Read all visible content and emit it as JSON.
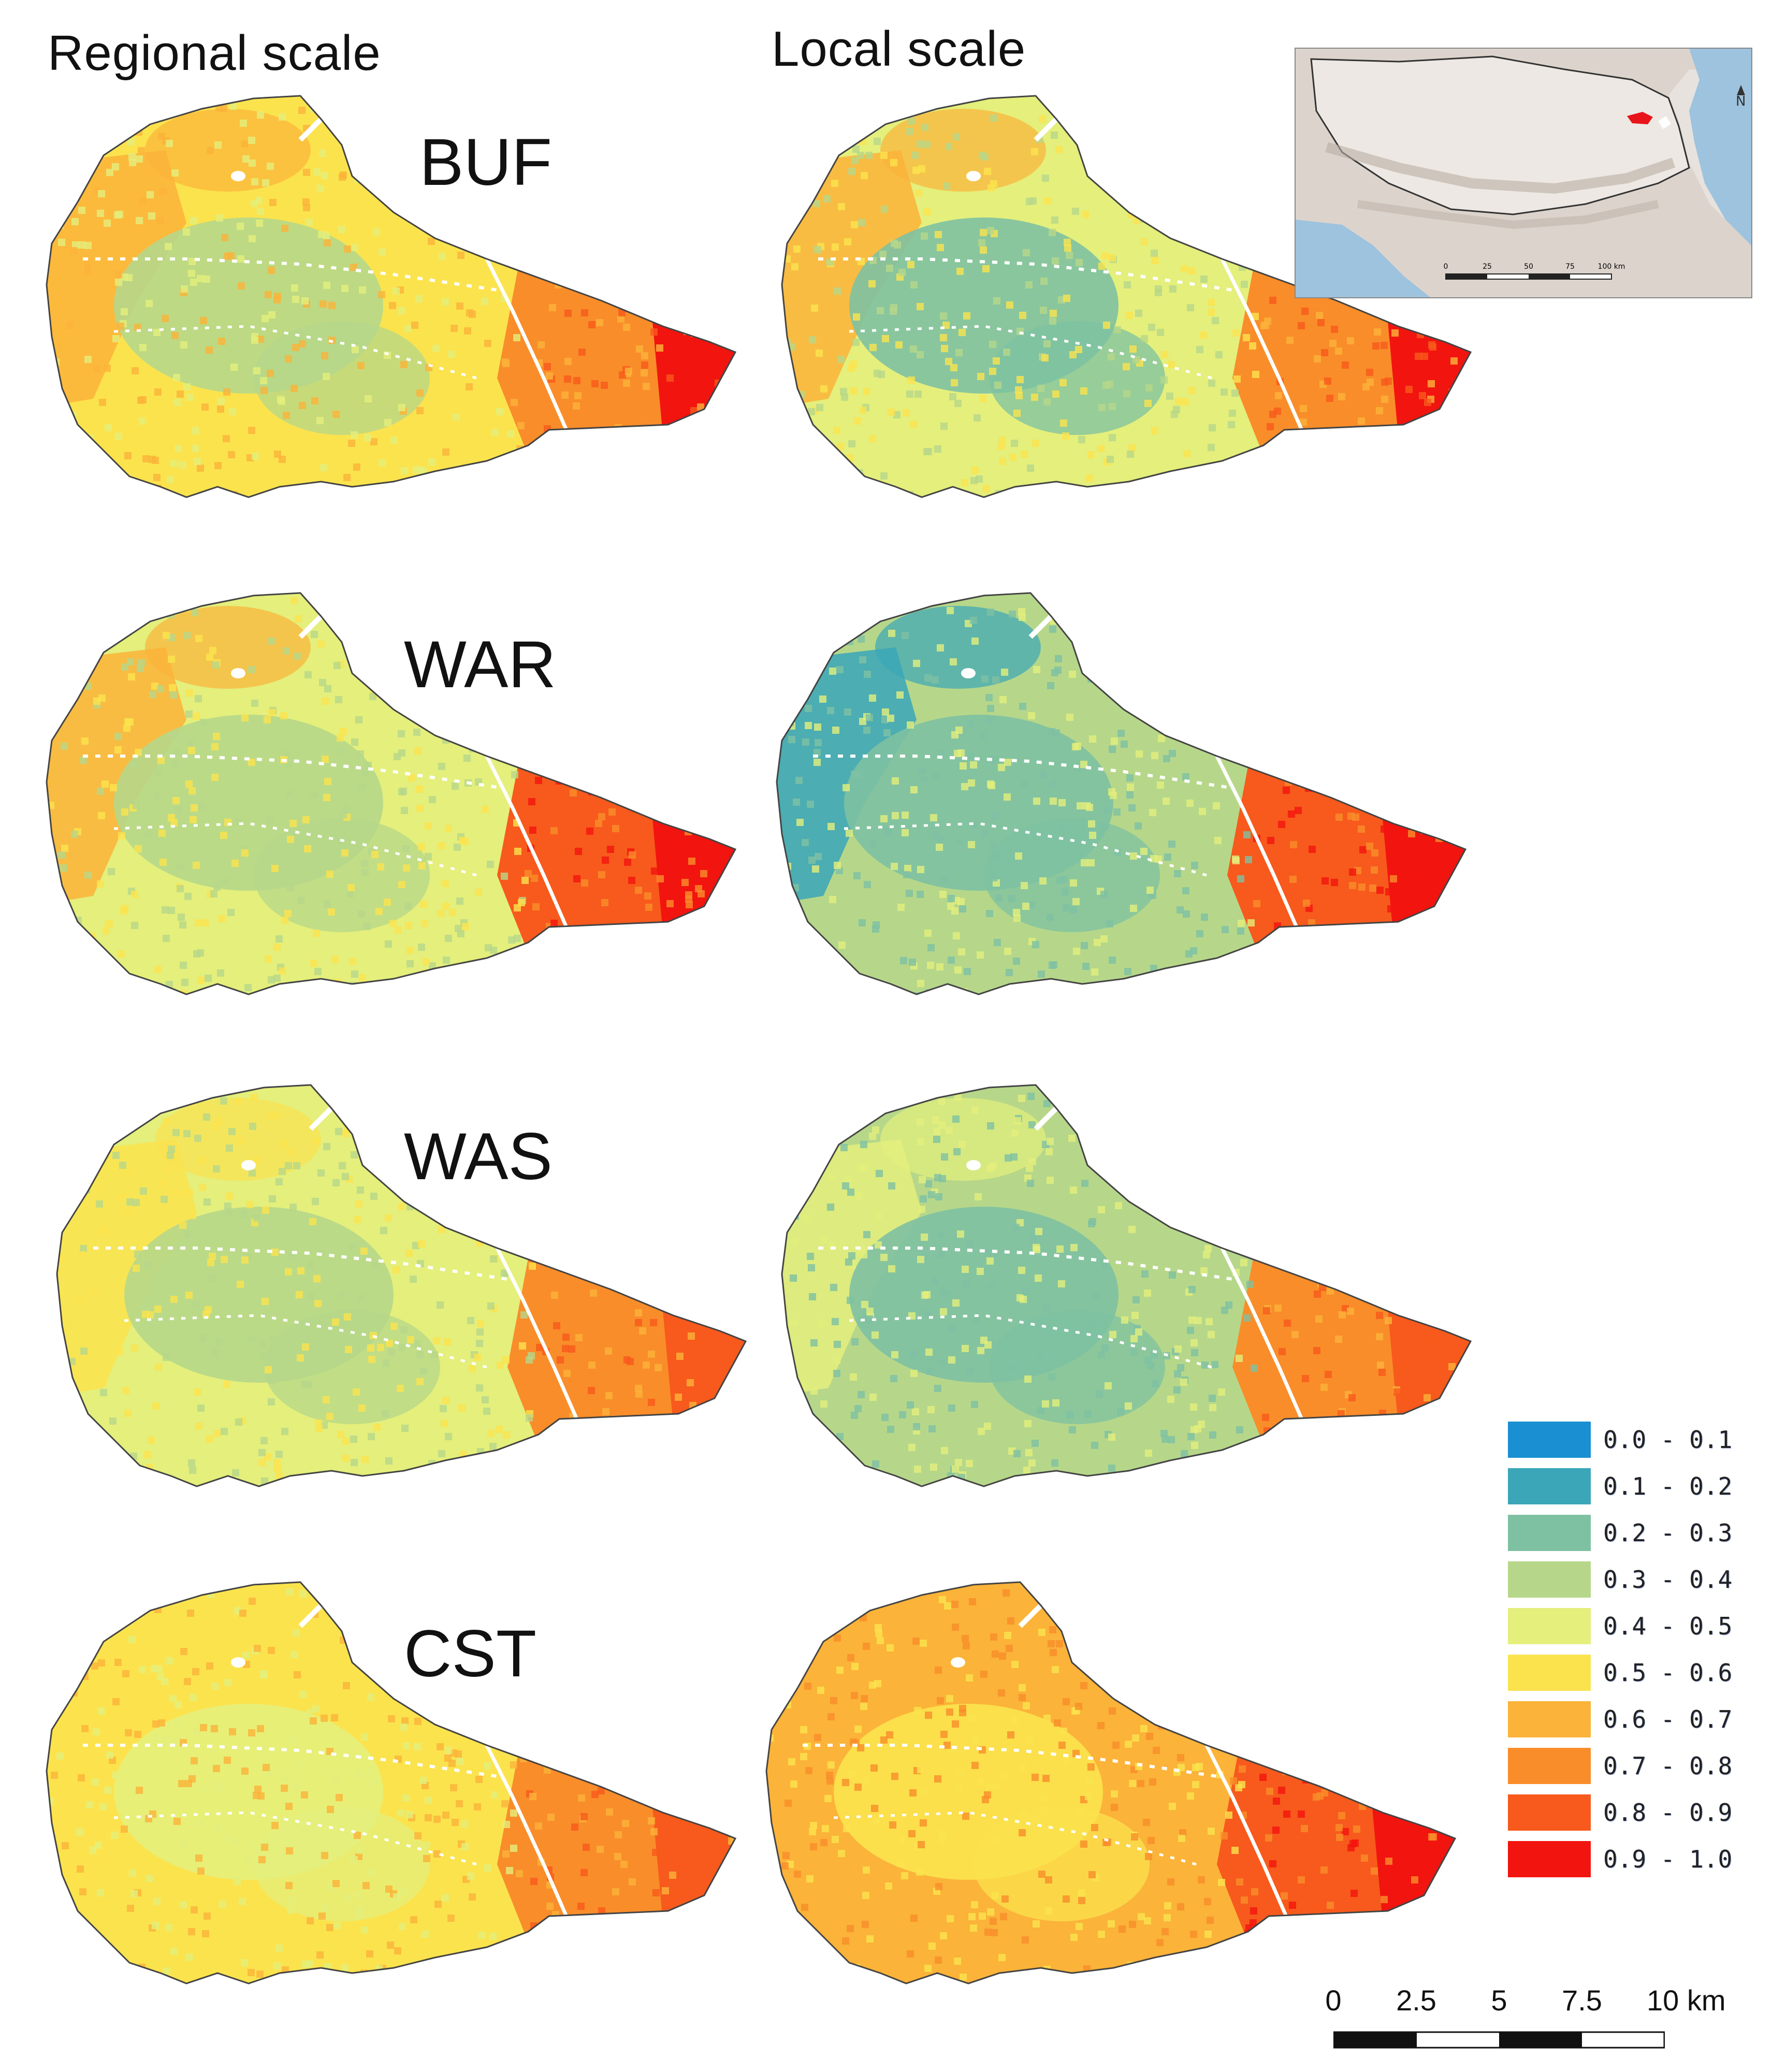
{
  "columns": {
    "regional": "Regional scale",
    "local": "Local scale"
  },
  "rows": [
    {
      "label": "BUF"
    },
    {
      "label": "WAR"
    },
    {
      "label": "WAS"
    },
    {
      "label": "CST"
    }
  ],
  "legend": [
    {
      "label": "0.0 - 0.1",
      "color": "#1a8fd1"
    },
    {
      "label": "0.1 - 0.2",
      "color": "#3aa6b8"
    },
    {
      "label": "0.2 - 0.3",
      "color": "#7ec1a2"
    },
    {
      "label": "0.3 - 0.4",
      "color": "#b6d78a"
    },
    {
      "label": "0.4 - 0.5",
      "color": "#e4ef7c"
    },
    {
      "label": "0.5 - 0.6",
      "color": "#fbe34e"
    },
    {
      "label": "0.6 - 0.7",
      "color": "#fbb339"
    },
    {
      "label": "0.7 - 0.8",
      "color": "#f98d2a"
    },
    {
      "label": "0.8 - 0.9",
      "color": "#f75a1c"
    },
    {
      "label": "0.9 - 1.0",
      "color": "#f2140f"
    }
  ],
  "scale_bar": {
    "ticks": [
      "0",
      "2.5",
      "5",
      "7.5",
      "10 km"
    ]
  },
  "inset": {
    "scale_ticks": [
      "0",
      "25",
      "50",
      "75",
      "100 km"
    ],
    "north": "N"
  }
}
